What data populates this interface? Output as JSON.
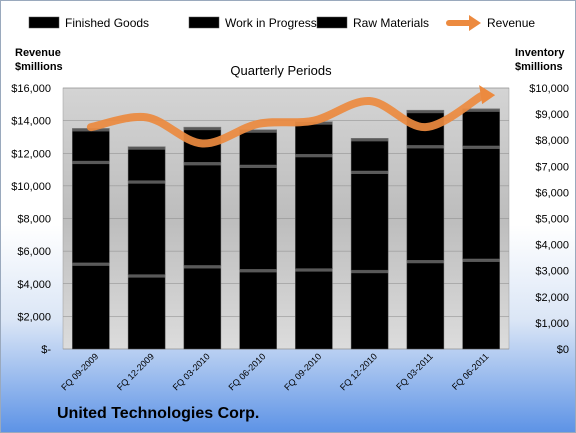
{
  "company": "United Technologies Corp.",
  "chart_data": {
    "type": "bar",
    "stacked": true,
    "title": "Quarterly Periods",
    "left_axis_label": [
      "Revenue",
      "$millions"
    ],
    "right_axis_label": [
      "Inventory",
      "$millions"
    ],
    "categories": [
      "FQ 09-2009",
      "FQ 12-2009",
      "FQ 03-2010",
      "FQ 06-2010",
      "FQ 09-2010",
      "FQ 12-2010",
      "FQ 03-2011",
      "FQ 06-2011"
    ],
    "series": [
      {
        "name": "Finished Goods",
        "axis": "right",
        "color": "#c0262a",
        "values": [
          3300,
          2850,
          3200,
          3050,
          3080,
          3020,
          3400,
          3450
        ]
      },
      {
        "name": "Work in Progress",
        "axis": "right",
        "color": "#5c84c0",
        "values": [
          3900,
          3600,
          3950,
          4000,
          4380,
          3800,
          4400,
          4330
        ]
      },
      {
        "name": "Raw Materials",
        "axis": "right",
        "color": "#8db04a",
        "values": [
          1250,
          1300,
          1350,
          1350,
          1250,
          1250,
          1350,
          1420
        ]
      },
      {
        "name": "Revenue",
        "axis": "left",
        "type": "line",
        "color": "#ec8a3f",
        "values": [
          13600,
          14200,
          12600,
          13800,
          14000,
          15200,
          13600,
          15500
        ]
      }
    ],
    "y_left": {
      "min": 0,
      "max": 16000,
      "step": 2000,
      "tick_labels": [
        "$-",
        "$2,000",
        "$4,000",
        "$6,000",
        "$8,000",
        "$10,000",
        "$12,000",
        "$14,000",
        "$16,000"
      ]
    },
    "y_right": {
      "min": 0,
      "max": 10000,
      "step": 1000,
      "tick_labels": [
        "$0",
        "$1,000",
        "$2,000",
        "$3,000",
        "$4,000",
        "$5,000",
        "$6,000",
        "$7,000",
        "$8,000",
        "$9,000",
        "$10,000"
      ]
    },
    "grid": true,
    "legend_position": "top"
  }
}
